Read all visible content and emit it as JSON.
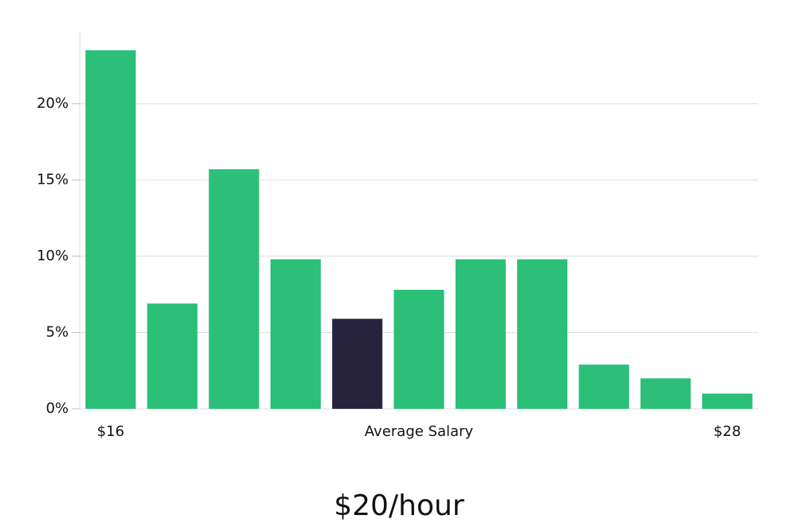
{
  "chart_data": {
    "type": "bar",
    "categories": [
      "$16",
      null,
      null,
      null,
      null,
      null,
      null,
      null,
      null,
      null,
      "$28"
    ],
    "values": [
      23.5,
      6.9,
      15.7,
      9.8,
      5.9,
      7.8,
      9.8,
      9.8,
      2.9,
      2.0,
      1.0
    ],
    "colors": [
      "#2bbf77",
      "#2bbf77",
      "#2bbf77",
      "#2bbf77",
      "#27233f",
      "#2bbf77",
      "#2bbf77",
      "#2bbf77",
      "#2bbf77",
      "#2bbf77",
      "#2bbf77"
    ],
    "x_label": "Average Salary",
    "annotation": "$20/hour",
    "ylim": [
      0,
      24.7
    ],
    "yticks": [
      {
        "value": 0,
        "label": "0%"
      },
      {
        "value": 5,
        "label": "5%"
      },
      {
        "value": 10,
        "label": "10%"
      },
      {
        "value": 15,
        "label": "15%"
      },
      {
        "value": 20,
        "label": "20%"
      }
    ],
    "grid": true
  }
}
